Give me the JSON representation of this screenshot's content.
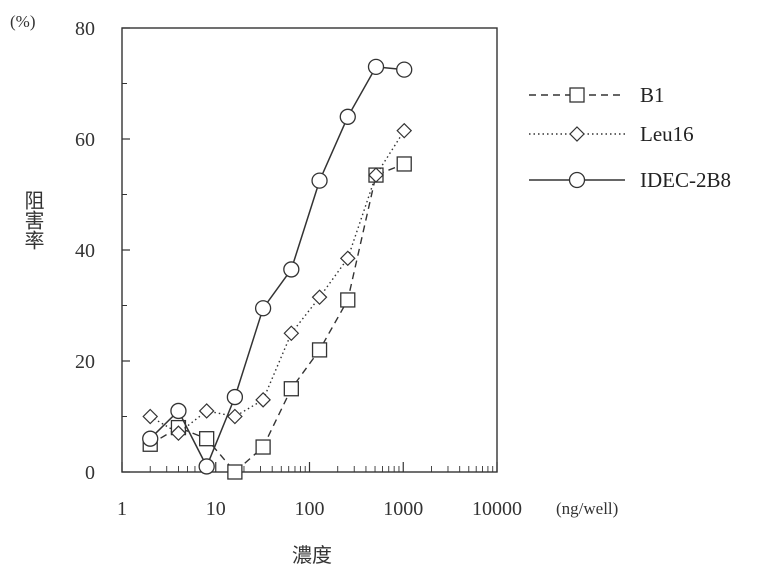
{
  "chart_data": {
    "type": "line",
    "title": "",
    "xlabel": "濃度",
    "ylabel": "阻害率",
    "ylabel_unit": "(%)",
    "xlabel_unit": "(ng/well)",
    "x_scale": "log",
    "xlim": [
      1,
      10000
    ],
    "ylim": [
      0,
      80
    ],
    "x_ticks": [
      "1",
      "10",
      "100",
      "1000",
      "10000"
    ],
    "y_ticks": [
      "0",
      "20",
      "40",
      "60",
      "80"
    ],
    "legend_position": "right",
    "series": [
      {
        "name": "B1",
        "line_style": "dashed",
        "marker": "square",
        "x": [
          2,
          4,
          8,
          16,
          32,
          64,
          128,
          256,
          512,
          1024
        ],
        "y": [
          5,
          8,
          6,
          0,
          4.5,
          15,
          22,
          31,
          53.5,
          55.5
        ]
      },
      {
        "name": "Leu16",
        "line_style": "dotted",
        "marker": "diamond",
        "x": [
          2,
          4,
          8,
          16,
          32,
          64,
          128,
          256,
          512,
          1024
        ],
        "y": [
          10,
          7,
          11,
          10,
          13,
          25,
          31.5,
          38.5,
          53.5,
          61.5
        ]
      },
      {
        "name": "IDEC-2B8",
        "line_style": "solid",
        "marker": "circle",
        "x": [
          2,
          4,
          8,
          16,
          32,
          64,
          128,
          256,
          512,
          1024
        ],
        "y": [
          6,
          11,
          1,
          13.5,
          29.5,
          36.5,
          52.5,
          64,
          73,
          72.5
        ]
      }
    ]
  }
}
